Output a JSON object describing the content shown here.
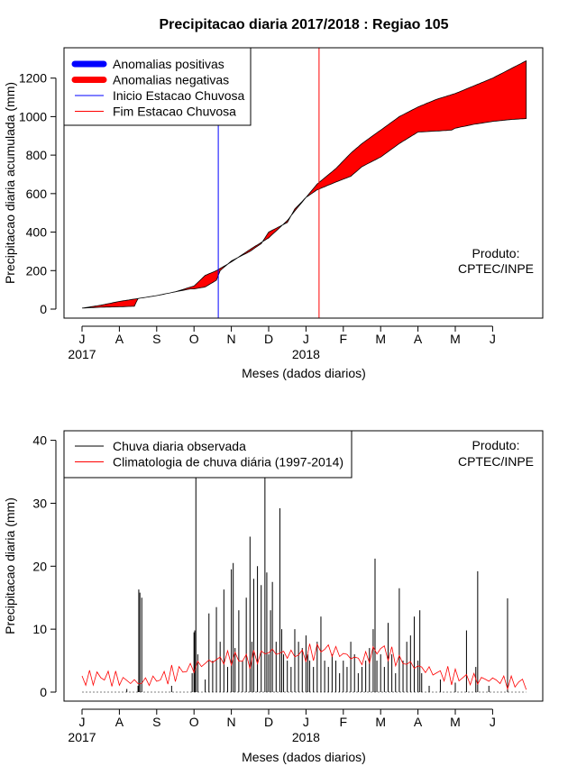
{
  "page": {
    "title": "Precipitacao diaria 2017/2018 : Regiao 105",
    "xlabel": "Meses (dados diarios)",
    "credit_line1": "Produto:",
    "credit_line2": "CPTEC/INPE"
  },
  "months": [
    "J",
    "A",
    "S",
    "O",
    "N",
    "D",
    "J",
    "F",
    "M",
    "A",
    "M",
    "J"
  ],
  "years": [
    "2017",
    "2018"
  ],
  "chart_data": [
    {
      "type": "area",
      "ylabel": "Precipitacao diaria acumulada (mm)",
      "ylim": [
        -40,
        1350
      ],
      "yticks": [
        0,
        200,
        400,
        600,
        800,
        1000,
        1200
      ],
      "x_unit": "months since July 2017",
      "legend": [
        {
          "label": "Anomalias positivas",
          "color": "#0000ff",
          "kind": "thick"
        },
        {
          "label": "Anomalias negativas",
          "color": "#ff0000",
          "kind": "thick"
        },
        {
          "label": "Inicio Estacao Chuvosa",
          "color": "#0000ff",
          "kind": "thin"
        },
        {
          "label": "Fim Estacao Chuvosa",
          "color": "#ff0000",
          "kind": "thin"
        }
      ],
      "rainy_season_start": 3.65,
      "rainy_season_end": 6.35,
      "observed_cumulative": {
        "x": [
          0,
          0.5,
          1.0,
          1.4,
          1.5,
          2.0,
          2.5,
          2.9,
          3.0,
          3.3,
          3.6,
          3.7,
          4.0,
          4.1,
          4.5,
          4.8,
          5.0,
          5.5,
          5.7,
          6.0,
          6.3,
          6.8,
          7.2,
          7.5,
          8.0,
          8.5,
          9.0,
          9.5,
          9.9,
          10.0,
          10.5,
          11.0,
          11.5,
          11.9
        ],
        "y": [
          5,
          10,
          12,
          15,
          55,
          70,
          90,
          105,
          105,
          115,
          150,
          200,
          250,
          260,
          300,
          340,
          400,
          450,
          520,
          580,
          620,
          660,
          690,
          740,
          790,
          860,
          920,
          925,
          930,
          940,
          960,
          975,
          985,
          990
        ]
      },
      "climatology_cumulative": {
        "x": [
          0,
          0.5,
          1.0,
          1.5,
          2.0,
          2.5,
          3.0,
          3.3,
          3.6,
          4.0,
          4.5,
          5.0,
          5.5,
          5.7,
          6.0,
          6.3,
          6.8,
          7.2,
          7.5,
          8.0,
          8.5,
          9.0,
          9.5,
          10.0,
          10.5,
          11.0,
          11.5,
          11.9
        ],
        "y": [
          5,
          20,
          40,
          55,
          70,
          90,
          120,
          175,
          200,
          245,
          310,
          370,
          460,
          510,
          580,
          650,
          730,
          810,
          860,
          930,
          1000,
          1050,
          1090,
          1120,
          1160,
          1200,
          1250,
          1290
        ]
      }
    },
    {
      "type": "bar",
      "ylabel": "Precipitacao diaria (mm)",
      "ylim": [
        -1.5,
        41.5
      ],
      "yticks": [
        0,
        10,
        20,
        30,
        40
      ],
      "x_unit": "months since July 2017",
      "legend": [
        {
          "label": "Chuva diaria observada",
          "color": "#000000",
          "kind": "thin"
        },
        {
          "label": "Climatologia de chuva diária (1997-2014)",
          "color": "#ff0000",
          "kind": "thin"
        }
      ],
      "observed_daily": {
        "x": [
          1.2,
          1.5,
          1.52,
          1.55,
          1.6,
          2.4,
          2.95,
          3.0,
          3.02,
          3.05,
          3.1,
          3.3,
          3.4,
          3.5,
          3.6,
          3.7,
          3.8,
          3.9,
          4.0,
          4.05,
          4.1,
          4.2,
          4.3,
          4.4,
          4.5,
          4.55,
          4.6,
          4.7,
          4.8,
          4.9,
          4.95,
          5.0,
          5.05,
          5.1,
          5.2,
          5.3,
          5.35,
          5.4,
          5.5,
          5.6,
          5.7,
          5.8,
          5.9,
          6.0,
          6.05,
          6.1,
          6.2,
          6.3,
          6.4,
          6.5,
          6.6,
          6.7,
          6.8,
          6.9,
          7.0,
          7.1,
          7.2,
          7.3,
          7.4,
          7.5,
          7.6,
          7.7,
          7.8,
          7.85,
          7.9,
          8.0,
          8.1,
          8.2,
          8.3,
          8.4,
          8.5,
          8.6,
          8.7,
          8.8,
          8.9,
          9.0,
          9.05,
          9.1,
          9.3,
          9.6,
          10.0,
          10.3,
          10.55,
          10.6,
          10.9,
          11.4
        ],
        "y": [
          0.5,
          1,
          16.3,
          15.8,
          15,
          1,
          3,
          9.5,
          9.8,
          34.5,
          6,
          2,
          12.5,
          5,
          13.5,
          8,
          16.3,
          4,
          19.5,
          20.5,
          7,
          13,
          5,
          15,
          24.7,
          8,
          18,
          20,
          17,
          34.3,
          19,
          6,
          13,
          17.5,
          8,
          29.2,
          10,
          6,
          5,
          4,
          10,
          8,
          7,
          9,
          6,
          5,
          4,
          8,
          12,
          5,
          4,
          6,
          5,
          3,
          5,
          4,
          8,
          6,
          3,
          4,
          5,
          7,
          10,
          21.2,
          5,
          6,
          4,
          11,
          6,
          3,
          16.5,
          5,
          8,
          9,
          12,
          5,
          13,
          3,
          1,
          2,
          1.5,
          9.8,
          4,
          19.2,
          1,
          14.9
        ]
      },
      "climatology_daily": {
        "x": [
          0,
          0.5,
          1.0,
          1.5,
          2.0,
          2.5,
          3.0,
          3.5,
          4.0,
          4.5,
          5.0,
          5.5,
          6.0,
          6.5,
          7.0,
          7.5,
          8.0,
          8.5,
          9.0,
          9.5,
          10.0,
          10.5,
          11.0,
          11.5,
          11.9
        ],
        "y": [
          2,
          2.5,
          2,
          1.5,
          2,
          3,
          4,
          5,
          5.5,
          5,
          6.5,
          6,
          6,
          7,
          6,
          5,
          7,
          5,
          4,
          3,
          2.5,
          2,
          2,
          1.5,
          1.5
        ]
      }
    }
  ]
}
